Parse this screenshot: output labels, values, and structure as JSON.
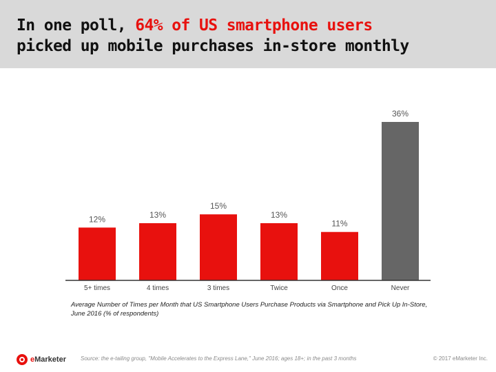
{
  "header": {
    "title_line1_prefix": "In one poll, ",
    "title_line1_highlight": "64% of US smartphone users",
    "title_line2": "picked up mobile purchases in-store monthly"
  },
  "colors": {
    "accent": "#e8110e",
    "bar_default": "#e8110e",
    "bar_highlight": "#666666",
    "header_bg": "#d9d9d9"
  },
  "chart_data": {
    "type": "bar",
    "title": "",
    "categories": [
      "5+ times",
      "4 times",
      "3 times",
      "Twice",
      "Once",
      "Never"
    ],
    "values": [
      12,
      13,
      15,
      13,
      11,
      36
    ],
    "data_labels": [
      "12%",
      "13%",
      "15%",
      "13%",
      "11%",
      "36%"
    ],
    "bar_colors": [
      "#e8110e",
      "#e8110e",
      "#e8110e",
      "#e8110e",
      "#e8110e",
      "#666666"
    ],
    "xlabel": "",
    "ylabel": "",
    "ylim": [
      0,
      36
    ],
    "grid": false,
    "legend": "none"
  },
  "caption": "Average Number of Times per Month that US Smartphone Users Purchase Products via Smartphone and Pick Up In-Store, June 2016 (% of respondents)",
  "footer": {
    "logo_text_e": "e",
    "logo_text_rest": "Marketer",
    "source": "Source: the e-tailing group, \"Mobile Accelerates to the Express Lane,\" June 2016; ages 18+; in the past 3 months",
    "copyright": "© 2017 eMarketer Inc."
  }
}
